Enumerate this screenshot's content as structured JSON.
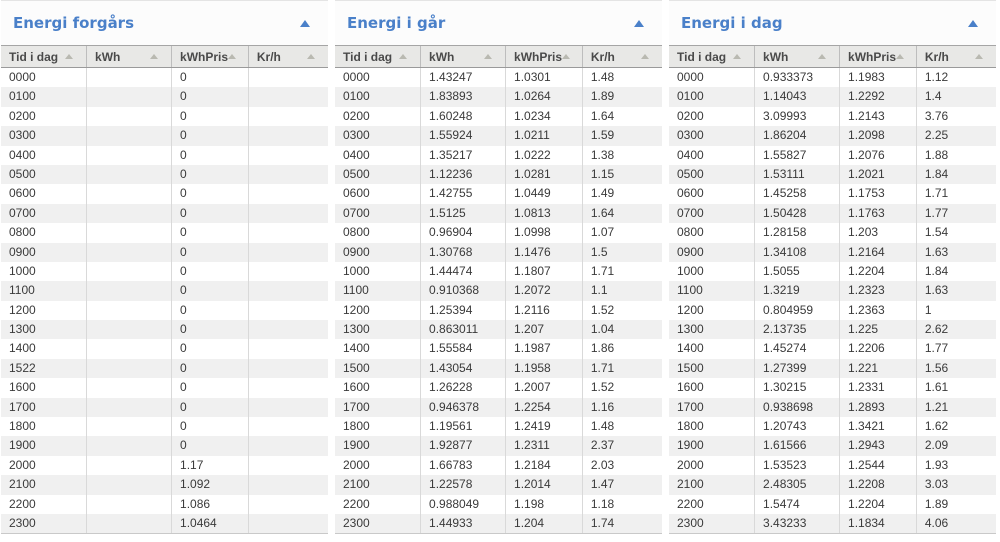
{
  "theme": {
    "accent": "#4a80c9",
    "header_bg": "#e8e8e6",
    "header_text": "#4a4a4a",
    "row_alt_bg": "#f0f0f0",
    "data_text": "#3a3a3a"
  },
  "panels": [
    {
      "title": "Energi forgårs",
      "collapse_icon": "chevron-up",
      "columns": [
        "Tid i dag",
        "kWh",
        "kWhPris",
        "Kr/h"
      ],
      "rows": [
        [
          "0000",
          "",
          "0",
          ""
        ],
        [
          "0100",
          "",
          "0",
          ""
        ],
        [
          "0200",
          "",
          "0",
          ""
        ],
        [
          "0300",
          "",
          "0",
          ""
        ],
        [
          "0400",
          "",
          "0",
          ""
        ],
        [
          "0500",
          "",
          "0",
          ""
        ],
        [
          "0600",
          "",
          "0",
          ""
        ],
        [
          "0700",
          "",
          "0",
          ""
        ],
        [
          "0800",
          "",
          "0",
          ""
        ],
        [
          "0900",
          "",
          "0",
          ""
        ],
        [
          "1000",
          "",
          "0",
          ""
        ],
        [
          "1100",
          "",
          "0",
          ""
        ],
        [
          "1200",
          "",
          "0",
          ""
        ],
        [
          "1300",
          "",
          "0",
          ""
        ],
        [
          "1400",
          "",
          "0",
          ""
        ],
        [
          "1522",
          "",
          "0",
          ""
        ],
        [
          "1600",
          "",
          "0",
          ""
        ],
        [
          "1700",
          "",
          "0",
          ""
        ],
        [
          "1800",
          "",
          "0",
          ""
        ],
        [
          "1900",
          "",
          "0",
          ""
        ],
        [
          "2000",
          "",
          "1.17",
          ""
        ],
        [
          "2100",
          "",
          "1.092",
          ""
        ],
        [
          "2200",
          "",
          "1.086",
          ""
        ],
        [
          "2300",
          "",
          "1.0464",
          ""
        ]
      ]
    },
    {
      "title": "Energi i går",
      "collapse_icon": "chevron-up",
      "columns": [
        "Tid i dag",
        "kWh",
        "kWhPris",
        "Kr/h"
      ],
      "rows": [
        [
          "0000",
          "1.43247",
          "1.0301",
          "1.48"
        ],
        [
          "0100",
          "1.83893",
          "1.0264",
          "1.89"
        ],
        [
          "0200",
          "1.60248",
          "1.0234",
          "1.64"
        ],
        [
          "0300",
          "1.55924",
          "1.0211",
          "1.59"
        ],
        [
          "0400",
          "1.35217",
          "1.0222",
          "1.38"
        ],
        [
          "0500",
          "1.12236",
          "1.0281",
          "1.15"
        ],
        [
          "0600",
          "1.42755",
          "1.0449",
          "1.49"
        ],
        [
          "0700",
          "1.5125",
          "1.0813",
          "1.64"
        ],
        [
          "0800",
          "0.96904",
          "1.0998",
          "1.07"
        ],
        [
          "0900",
          "1.30768",
          "1.1476",
          "1.5"
        ],
        [
          "1000",
          "1.44474",
          "1.1807",
          "1.71"
        ],
        [
          "1100",
          "0.910368",
          "1.2072",
          "1.1"
        ],
        [
          "1200",
          "1.25394",
          "1.2116",
          "1.52"
        ],
        [
          "1300",
          "0.863011",
          "1.207",
          "1.04"
        ],
        [
          "1400",
          "1.55584",
          "1.1987",
          "1.86"
        ],
        [
          "1500",
          "1.43054",
          "1.1958",
          "1.71"
        ],
        [
          "1600",
          "1.26228",
          "1.2007",
          "1.52"
        ],
        [
          "1700",
          "0.946378",
          "1.2254",
          "1.16"
        ],
        [
          "1800",
          "1.19561",
          "1.2419",
          "1.48"
        ],
        [
          "1900",
          "1.92877",
          "1.2311",
          "2.37"
        ],
        [
          "2000",
          "1.66783",
          "1.2184",
          "2.03"
        ],
        [
          "2100",
          "1.22578",
          "1.2014",
          "1.47"
        ],
        [
          "2200",
          "0.988049",
          "1.198",
          "1.18"
        ],
        [
          "2300",
          "1.44933",
          "1.204",
          "1.74"
        ]
      ]
    },
    {
      "title": "Energi i dag",
      "collapse_icon": "chevron-up",
      "columns": [
        "Tid i dag",
        "kWh",
        "kWhPris",
        "Kr/h"
      ],
      "rows": [
        [
          "0000",
          "0.933373",
          "1.1983",
          "1.12"
        ],
        [
          "0100",
          "1.14043",
          "1.2292",
          "1.4"
        ],
        [
          "0200",
          "3.09993",
          "1.2143",
          "3.76"
        ],
        [
          "0300",
          "1.86204",
          "1.2098",
          "2.25"
        ],
        [
          "0400",
          "1.55827",
          "1.2076",
          "1.88"
        ],
        [
          "0500",
          "1.53111",
          "1.2021",
          "1.84"
        ],
        [
          "0600",
          "1.45258",
          "1.1753",
          "1.71"
        ],
        [
          "0700",
          "1.50428",
          "1.1763",
          "1.77"
        ],
        [
          "0800",
          "1.28158",
          "1.203",
          "1.54"
        ],
        [
          "0900",
          "1.34108",
          "1.2164",
          "1.63"
        ],
        [
          "1000",
          "1.5055",
          "1.2204",
          "1.84"
        ],
        [
          "1100",
          "1.3219",
          "1.2323",
          "1.63"
        ],
        [
          "1200",
          "0.804959",
          "1.2363",
          "1"
        ],
        [
          "1300",
          "2.13735",
          "1.225",
          "2.62"
        ],
        [
          "1400",
          "1.45274",
          "1.2206",
          "1.77"
        ],
        [
          "1500",
          "1.27399",
          "1.221",
          "1.56"
        ],
        [
          "1600",
          "1.30215",
          "1.2331",
          "1.61"
        ],
        [
          "1700",
          "0.938698",
          "1.2893",
          "1.21"
        ],
        [
          "1800",
          "1.20743",
          "1.3421",
          "1.62"
        ],
        [
          "1900",
          "1.61566",
          "1.2943",
          "2.09"
        ],
        [
          "2000",
          "1.53523",
          "1.2544",
          "1.93"
        ],
        [
          "2100",
          "2.48305",
          "1.2208",
          "3.03"
        ],
        [
          "2200",
          "1.5474",
          "1.2204",
          "1.89"
        ],
        [
          "2300",
          "3.43233",
          "1.1834",
          "4.06"
        ]
      ]
    }
  ]
}
